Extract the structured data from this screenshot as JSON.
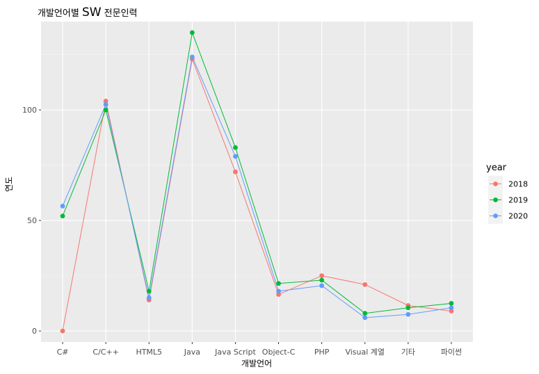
{
  "chart_data": {
    "type": "line",
    "title_prefix": "개발언어별 ",
    "title_emph": "SW",
    "title_suffix": " 전문인력",
    "xlabel": "개발언어",
    "ylabel": "연도",
    "categories": [
      "C#",
      "C/C++",
      "HTML5",
      "Java",
      "Java Script",
      "Object-C",
      "PHP",
      "Visual 계열",
      "기타",
      "파이썬"
    ],
    "ylim": [
      -5,
      140
    ],
    "yticks": [
      0,
      50,
      100
    ],
    "yticks_labels": [
      "0",
      "50",
      "100"
    ],
    "grid": true,
    "legend": {
      "title": "year",
      "position": "right"
    },
    "series": [
      {
        "name": "2018",
        "color": "#F8766D",
        "values": [
          0,
          104,
          14,
          123,
          72,
          16.5,
          25,
          21,
          11.5,
          9
        ]
      },
      {
        "name": "2019",
        "color": "#00BA38",
        "values": [
          52,
          100,
          18,
          135,
          83,
          21.5,
          23,
          8,
          10.5,
          12.5
        ]
      },
      {
        "name": "2020",
        "color": "#619CFF",
        "values": [
          56.5,
          102.5,
          15,
          124,
          79,
          18,
          20.5,
          6,
          7.5,
          10.5
        ]
      }
    ]
  }
}
